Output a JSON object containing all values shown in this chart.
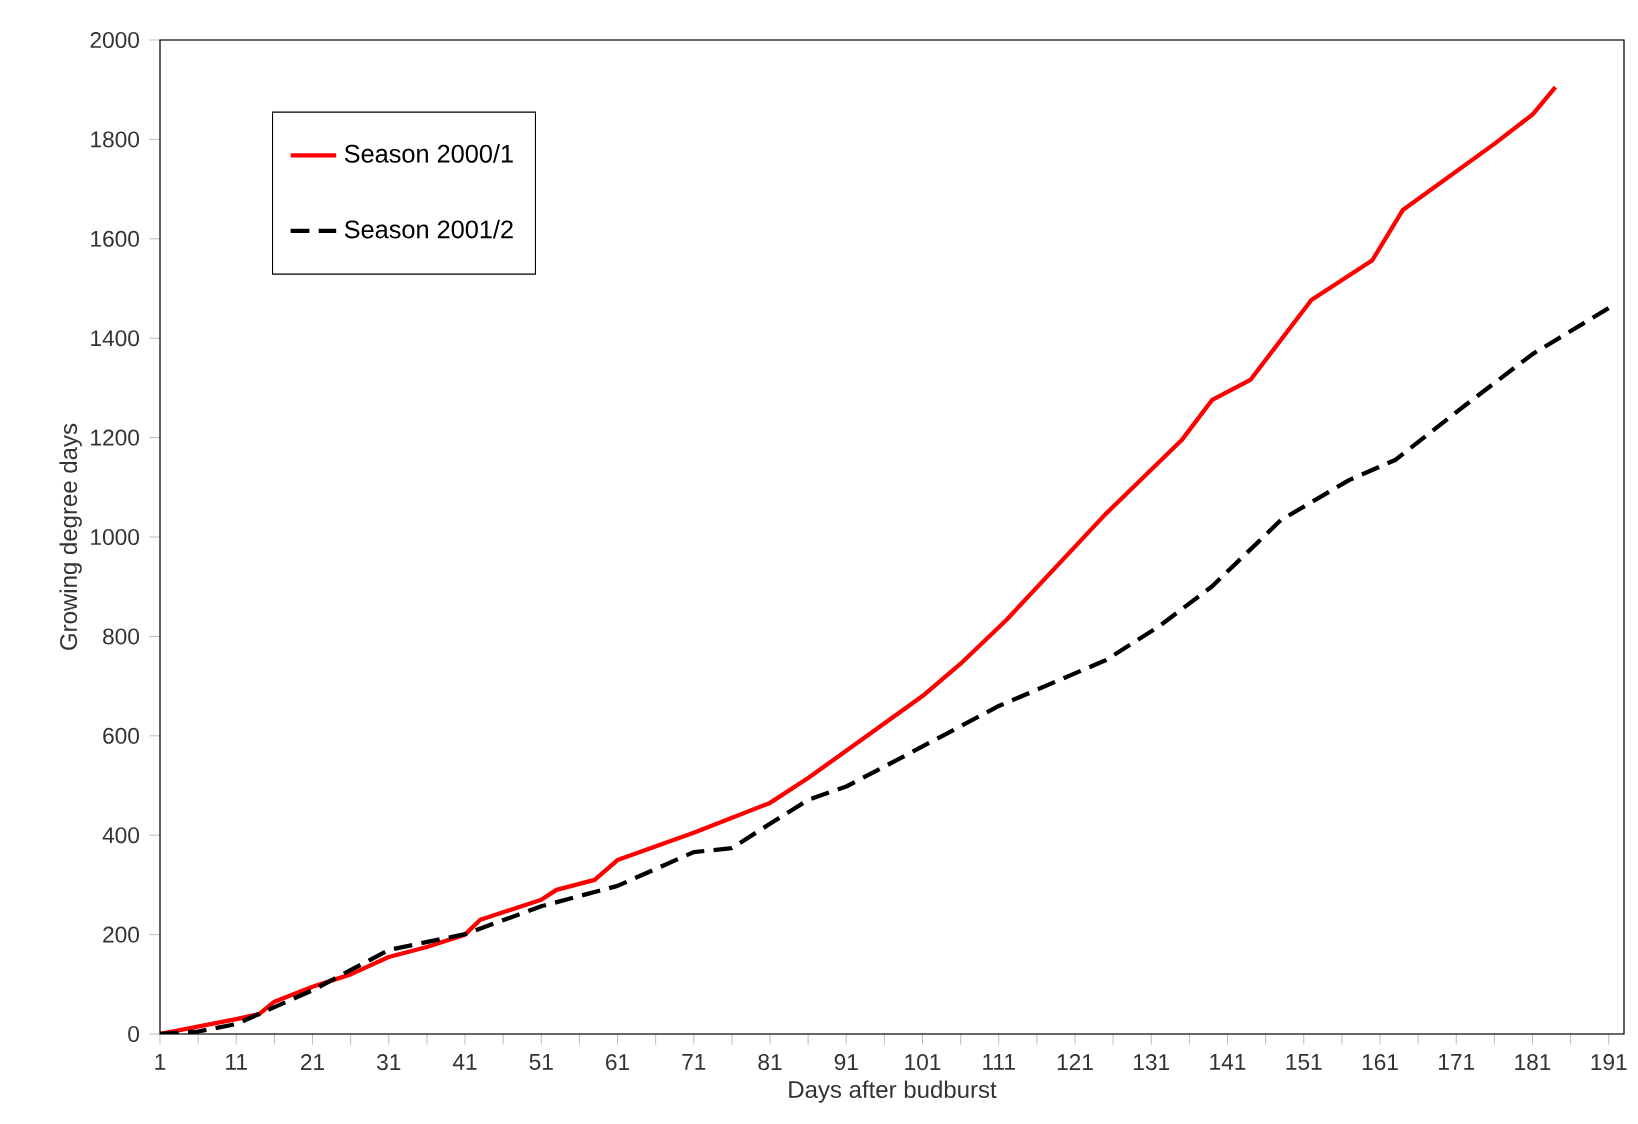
{
  "chart_data": {
    "type": "line",
    "xlabel": "Days after budburst",
    "ylabel": "Growing degree days",
    "xlim": [
      1,
      193
    ],
    "ylim": [
      0,
      2000
    ],
    "xticks": [
      1,
      {
        "value": 6,
        "label": null
      },
      11,
      {
        "value": 16,
        "label": null
      },
      21,
      {
        "value": 26,
        "label": null
      },
      31,
      {
        "value": 36,
        "label": null
      },
      41,
      {
        "value": 46,
        "label": null
      },
      51,
      {
        "value": 56,
        "label": null
      },
      61,
      {
        "value": 66,
        "label": null
      },
      71,
      {
        "value": 76,
        "label": null
      },
      81,
      {
        "value": 86,
        "label": null
      },
      91,
      {
        "value": 96,
        "label": null
      },
      101,
      {
        "value": 106,
        "label": null
      },
      111,
      {
        "value": 116,
        "label": null
      },
      121,
      {
        "value": 126,
        "label": null
      },
      131,
      {
        "value": 136,
        "label": null
      },
      141,
      {
        "value": 146,
        "label": null
      },
      151,
      {
        "value": 156,
        "label": null
      },
      161,
      {
        "value": 166,
        "label": null
      },
      171,
      {
        "value": 176,
        "label": null
      },
      181,
      {
        "value": 186,
        "label": null
      },
      191
    ],
    "yticks": [
      0,
      200,
      400,
      600,
      800,
      1000,
      1200,
      1400,
      1600,
      1800,
      2000
    ],
    "grid": false,
    "legend": "top left",
    "marker": "none",
    "series": [
      {
        "name": "Season 2000/1",
        "color": "#ff0000",
        "line_style": "solid",
        "x": [
          1,
          6,
          11,
          14,
          16,
          21,
          26,
          31,
          36,
          41,
          43,
          51,
          53,
          58,
          61,
          71,
          81,
          86,
          91,
          101,
          106,
          112,
          125,
          135,
          139,
          144,
          152,
          160,
          164,
          176,
          181,
          184
        ],
        "values": [
          0,
          15,
          30,
          40,
          65,
          95,
          120,
          155,
          175,
          200,
          230,
          270,
          290,
          310,
          350,
          405,
          465,
          515,
          570,
          680,
          745,
          833,
          1046,
          1195,
          1276,
          1316,
          1477,
          1557,
          1658,
          1791,
          1850,
          1905
        ]
      },
      {
        "name": "Season 2001/2",
        "color": "#000000",
        "line_style": "dashed",
        "x": [
          1,
          6,
          11,
          21,
          31,
          41,
          51,
          61,
          71,
          76,
          81,
          86,
          91,
          96,
          111,
          125,
          132,
          139,
          148,
          157,
          163,
          172,
          181,
          192
        ],
        "values": [
          0,
          5,
          20,
          88,
          169,
          201,
          257,
          298,
          366,
          374,
          423,
          471,
          498,
          538,
          660,
          752,
          820,
          901,
          1034,
          1115,
          1155,
          1263,
          1368,
          1470
        ]
      }
    ]
  }
}
